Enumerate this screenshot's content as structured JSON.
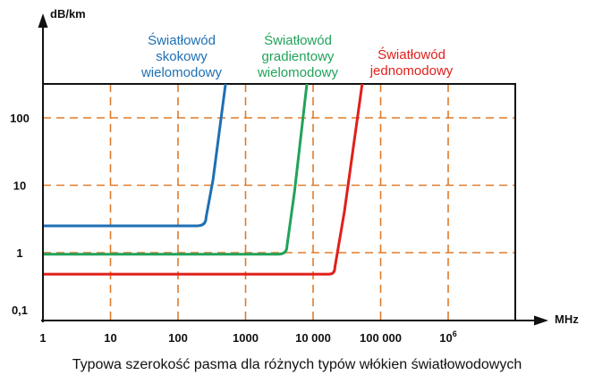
{
  "chart_data": {
    "type": "line",
    "ylabel": "dB/km",
    "xlabel": "MHz",
    "x_scale": "log",
    "y_scale": "log",
    "x_ticks": [
      {
        "value": 1,
        "label": "1"
      },
      {
        "value": 10,
        "label": "10"
      },
      {
        "value": 100,
        "label": "100"
      },
      {
        "value": 1000,
        "label": "1000"
      },
      {
        "value": 10000,
        "label": "10 000"
      },
      {
        "value": 100000,
        "label": "100 000"
      },
      {
        "value": 1000000,
        "label": "10",
        "sup": "6"
      }
    ],
    "y_ticks": [
      {
        "value": 0.1,
        "label": "0,1"
      },
      {
        "value": 1,
        "label": "1"
      },
      {
        "value": 10,
        "label": "10"
      },
      {
        "value": 100,
        "label": "100"
      }
    ],
    "xlim": [
      1,
      10000000
    ],
    "ylim": [
      0.1,
      400
    ],
    "grid": true,
    "series": [
      {
        "name": "Światłowód skokowy wielomodowy",
        "label_lines": [
          "Światłowód",
          "skokowy",
          "wielomodowy"
        ],
        "color": "#1f6fb4",
        "points": [
          [
            1,
            2.5
          ],
          [
            190,
            2.5
          ],
          [
            260,
            3.3
          ],
          [
            330,
            12
          ],
          [
            520,
            400
          ]
        ]
      },
      {
        "name": "Światłowód gradientowy wielomodowy",
        "label_lines": [
          "Światłowód",
          "gradientowy",
          "wielomodowy"
        ],
        "color": "#21a35a",
        "points": [
          [
            1,
            0.95
          ],
          [
            3000,
            0.95
          ],
          [
            4100,
            1.25
          ],
          [
            5300,
            8
          ],
          [
            8300,
            400
          ]
        ]
      },
      {
        "name": "Światłowód jednomodowy",
        "label_lines": [
          "Światłowód",
          "jednomodowy"
        ],
        "color": "#e0201b",
        "points": [
          [
            1,
            0.48
          ],
          [
            17000,
            0.48
          ],
          [
            21000,
            0.6
          ],
          [
            29000,
            4
          ],
          [
            55000,
            400
          ]
        ]
      }
    ],
    "title": "Typowa szerokość pasma dla różnych typów włókien światłowodowych"
  },
  "colors": {
    "grid": "#e07b2a",
    "frame": "#111111"
  }
}
